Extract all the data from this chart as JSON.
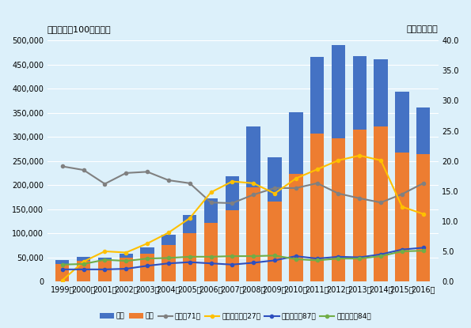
{
  "years": [
    1999,
    2000,
    2001,
    2002,
    2003,
    2004,
    2005,
    2006,
    2007,
    2008,
    2009,
    2010,
    2011,
    2012,
    2013,
    2014,
    2015,
    2016
  ],
  "imports": [
    44919,
    50577,
    50144,
    56771,
    71183,
    97313,
    138370,
    172876,
    217543,
    321410,
    257658,
    350783,
    465076,
    490413,
    467950,
    461363,
    394125,
    361664
  ],
  "exports": [
    35445,
    42299,
    43314,
    49299,
    57457,
    75631,
    99651,
    121259,
    147564,
    195070,
    165202,
    222922,
    307086,
    297261,
    315147,
    321740,
    267947,
    264572
  ],
  "precious_stone": [
    19.1,
    18.5,
    16.2,
    18.0,
    18.2,
    16.8,
    16.3,
    13.1,
    13.0,
    14.4,
    15.5,
    15.5,
    16.3,
    14.6,
    13.8,
    13.1,
    14.5,
    16.3
  ],
  "mineral_fuel": [
    0.2,
    3.3,
    5.0,
    4.8,
    6.3,
    8.1,
    10.5,
    14.8,
    16.6,
    16.3,
    14.6,
    17.1,
    18.6,
    20.1,
    20.9,
    20.1,
    12.4,
    11.2
  ],
  "transport": [
    2.0,
    2.0,
    2.0,
    2.1,
    2.6,
    3.0,
    3.2,
    3.0,
    2.8,
    3.1,
    3.5,
    4.2,
    3.8,
    4.1,
    4.0,
    4.5,
    5.3,
    5.6
  ],
  "machinery": [
    2.8,
    2.9,
    3.6,
    3.4,
    3.8,
    3.9,
    4.1,
    4.1,
    4.2,
    4.2,
    4.3,
    3.7,
    3.5,
    3.8,
    3.8,
    4.2,
    5.0,
    5.1
  ],
  "bar_color_import": "#4472C4",
  "bar_color_export": "#ED7D31",
  "line_color_precious": "#808080",
  "line_color_fuel": "#FFC000",
  "line_color_transport": "#2E4FBF",
  "line_color_machinery": "#70AD47",
  "bg_color": "#DCF0FA",
  "ylabel_left": "輸出入額（100万ドル）",
  "ylabel_right": "シェア（％）",
  "ylim_left": [
    0,
    500000
  ],
  "ylim_right": [
    0,
    40.0
  ],
  "legend_import": "輸入",
  "legend_export": "輸出",
  "legend_precious": "貴石（71）",
  "legend_fuel": "鉱物性燃料（27）",
  "legend_transport": "輸送機器（87）",
  "legend_machinery": "一般機械（84）",
  "yticks_left": [
    0,
    50000,
    100000,
    150000,
    200000,
    250000,
    300000,
    350000,
    400000,
    450000,
    500000
  ],
  "yticks_right": [
    0.0,
    5.0,
    10.0,
    15.0,
    20.0,
    25.0,
    30.0,
    35.0,
    40.0
  ]
}
